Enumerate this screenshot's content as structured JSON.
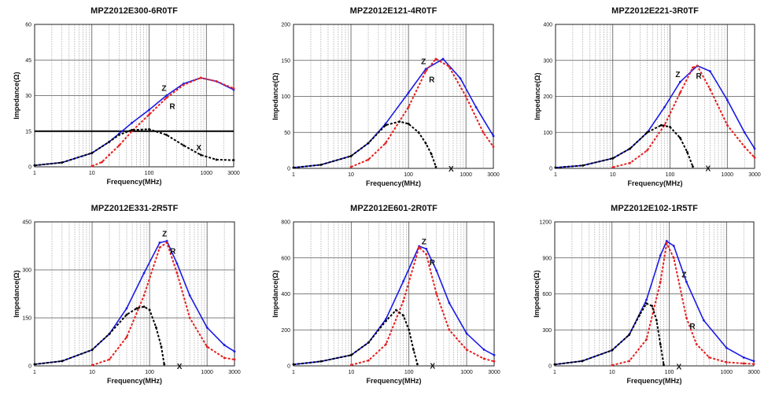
{
  "chart_data": [
    {
      "type": "line",
      "title": "MPZ2012E300-6R0TF",
      "xlabel": "Frequency(MHz)",
      "ylabel": "Impedance(Ω)",
      "x_scale": "log",
      "xlim": [
        1,
        3000
      ],
      "x_ticks": [
        "1",
        "10",
        "100",
        "1000",
        "3000"
      ],
      "ylim": [
        0,
        60
      ],
      "y_ticks": [
        "0",
        "15",
        "30",
        "45",
        "60"
      ],
      "grid": true,
      "series": [
        {
          "name": "Z",
          "color": "#1a1ae6",
          "x": [
            1,
            3,
            10,
            20,
            30,
            50,
            100,
            200,
            400,
            800,
            1500,
            3000
          ],
          "y": [
            0.6,
            1.8,
            5.8,
            10.5,
            14,
            18.5,
            24,
            30,
            35,
            37.5,
            36,
            32.5
          ]
        },
        {
          "name": "R",
          "color": "#e62020",
          "x": [
            10,
            15,
            20,
            30,
            50,
            100,
            200,
            400,
            800,
            1500,
            3000
          ],
          "y": [
            0.3,
            2,
            5,
            9,
            15,
            22,
            29,
            34.5,
            37.5,
            36,
            33
          ]
        },
        {
          "name": "X",
          "color": "#000000",
          "x": [
            1,
            3,
            10,
            20,
            30,
            50,
            100,
            200,
            400,
            800,
            1500,
            3000
          ],
          "y": [
            0.6,
            1.8,
            5.8,
            10.5,
            13.5,
            15.5,
            15.8,
            13.5,
            9,
            5,
            3,
            2.8
          ]
        }
      ],
      "hline": 15
    },
    {
      "type": "line",
      "title": "MPZ2012E121-4R0TF",
      "xlabel": "Frequency(MHz)",
      "ylabel": "Impedance(Ω)",
      "x_scale": "log",
      "xlim": [
        1,
        3000
      ],
      "x_ticks": [
        "1",
        "10",
        "100",
        "1000",
        "3000"
      ],
      "ylim": [
        0,
        200
      ],
      "y_ticks": [
        "0",
        "50",
        "100",
        "150",
        "200"
      ],
      "grid": true,
      "series": [
        {
          "name": "Z",
          "color": "#1a1ae6",
          "x": [
            1,
            3,
            10,
            20,
            40,
            100,
            200,
            400,
            800,
            1500,
            3000
          ],
          "y": [
            1,
            5,
            17,
            35,
            62,
            105,
            138,
            152,
            125,
            85,
            45
          ]
        },
        {
          "name": "R",
          "color": "#e62020",
          "x": [
            10,
            20,
            40,
            100,
            200,
            300,
            500,
            1000,
            2000,
            3000
          ],
          "y": [
            2,
            12,
            35,
            85,
            135,
            152,
            142,
            100,
            50,
            30
          ]
        },
        {
          "name": "X",
          "color": "#000000",
          "x": [
            1,
            3,
            10,
            20,
            40,
            70,
            100,
            150,
            200,
            250,
            300
          ],
          "y": [
            1,
            5,
            17,
            35,
            60,
            65,
            62,
            50,
            35,
            20,
            2
          ]
        }
      ]
    },
    {
      "type": "line",
      "title": "MPZ2012E221-3R0TF",
      "xlabel": "Frequency(MHz)",
      "ylabel": "Impedance(Ω)",
      "x_scale": "log",
      "xlim": [
        1,
        3000
      ],
      "x_ticks": [
        "1",
        "10",
        "100",
        "1000",
        "3000"
      ],
      "ylim": [
        0,
        400
      ],
      "y_ticks": [
        "0",
        "100",
        "200",
        "300",
        "400"
      ],
      "grid": true,
      "series": [
        {
          "name": "Z",
          "color": "#1a1ae6",
          "x": [
            1,
            3,
            10,
            20,
            40,
            80,
            150,
            300,
            500,
            1000,
            2000,
            3000
          ],
          "y": [
            2,
            8,
            28,
            55,
            100,
            170,
            240,
            285,
            270,
            190,
            100,
            55
          ]
        },
        {
          "name": "R",
          "color": "#e62020",
          "x": [
            10,
            20,
            40,
            80,
            150,
            250,
            300,
            500,
            1000,
            2000,
            3000
          ],
          "y": [
            3,
            15,
            50,
            120,
            210,
            280,
            285,
            220,
            120,
            60,
            30
          ]
        },
        {
          "name": "X",
          "color": "#000000",
          "x": [
            1,
            3,
            10,
            20,
            40,
            70,
            100,
            150,
            200,
            250
          ],
          "y": [
            2,
            8,
            28,
            55,
            100,
            120,
            115,
            85,
            45,
            5
          ]
        }
      ]
    },
    {
      "type": "line",
      "title": "MPZ2012E331-2R5TF",
      "xlabel": "Frequency(MHz)",
      "ylabel": "Impedance(Ω)",
      "x_scale": "log",
      "xlim": [
        1,
        3000
      ],
      "x_ticks": [
        "1",
        "10",
        "100",
        "1000",
        "3000"
      ],
      "ylim": [
        0,
        450
      ],
      "y_ticks": [
        "0",
        "150",
        "300",
        "450"
      ],
      "grid": true,
      "series": [
        {
          "name": "Z",
          "color": "#1a1ae6",
          "x": [
            1,
            3,
            10,
            20,
            40,
            80,
            150,
            200,
            300,
            500,
            1000,
            2000,
            3000
          ],
          "y": [
            5,
            15,
            50,
            100,
            180,
            290,
            385,
            390,
            320,
            220,
            120,
            65,
            45
          ]
        },
        {
          "name": "R",
          "color": "#e62020",
          "x": [
            10,
            20,
            40,
            80,
            150,
            200,
            300,
            500,
            1000,
            2000,
            3000
          ],
          "y": [
            2,
            20,
            90,
            220,
            370,
            385,
            290,
            150,
            60,
            25,
            20
          ]
        },
        {
          "name": "X",
          "color": "#000000",
          "x": [
            1,
            3,
            10,
            20,
            40,
            60,
            80,
            100,
            130,
            160,
            180
          ],
          "y": [
            5,
            15,
            50,
            100,
            160,
            180,
            185,
            175,
            120,
            60,
            5
          ]
        }
      ]
    },
    {
      "type": "line",
      "title": "MPZ2012E601-2R0TF",
      "xlabel": "Frequency(MHz)",
      "ylabel": "Impedance(Ω)",
      "x_scale": "log",
      "xlim": [
        1,
        3000
      ],
      "x_ticks": [
        "1",
        "10",
        "100",
        "1000",
        "3000"
      ],
      "ylim": [
        0,
        800
      ],
      "y_ticks": [
        "0",
        "200",
        "400",
        "600",
        "800"
      ],
      "grid": true,
      "series": [
        {
          "name": "Z",
          "color": "#1a1ae6",
          "x": [
            1,
            3,
            10,
            20,
            40,
            80,
            150,
            200,
            300,
            500,
            1000,
            2000,
            3000
          ],
          "y": [
            8,
            25,
            60,
            130,
            260,
            470,
            665,
            650,
            530,
            350,
            180,
            90,
            60
          ]
        },
        {
          "name": "R",
          "color": "#e62020",
          "x": [
            10,
            20,
            40,
            80,
            150,
            200,
            300,
            500,
            1000,
            2000,
            3000
          ],
          "y": [
            5,
            30,
            120,
            360,
            660,
            620,
            400,
            200,
            90,
            40,
            25
          ]
        },
        {
          "name": "X",
          "color": "#000000",
          "x": [
            1,
            3,
            10,
            20,
            40,
            60,
            80,
            100,
            120,
            140
          ],
          "y": [
            8,
            25,
            60,
            130,
            250,
            310,
            280,
            200,
            90,
            10
          ]
        }
      ]
    },
    {
      "type": "line",
      "title": "MPZ2012E102-1R5TF",
      "xlabel": "Frequency(MHz)",
      "ylabel": "Impedance(Ω)",
      "x_scale": "log",
      "xlim": [
        1,
        3000
      ],
      "x_ticks": [
        "1",
        "10",
        "100",
        "1000",
        "3000"
      ],
      "ylim": [
        0,
        1200
      ],
      "y_ticks": [
        "0",
        "300",
        "600",
        "900",
        "1200"
      ],
      "grid": true,
      "series": [
        {
          "name": "Z",
          "color": "#1a1ae6",
          "x": [
            1,
            3,
            10,
            20,
            40,
            70,
            90,
            120,
            200,
            400,
            1000,
            2000,
            3000
          ],
          "y": [
            12,
            40,
            130,
            260,
            550,
            920,
            1040,
            1000,
            700,
            380,
            150,
            70,
            40
          ]
        },
        {
          "name": "R",
          "color": "#e62020",
          "x": [
            10,
            20,
            40,
            70,
            90,
            120,
            200,
            300,
            500,
            1000,
            2000,
            3000
          ],
          "y": [
            5,
            40,
            220,
            700,
            1020,
            900,
            400,
            180,
            70,
            30,
            20,
            15
          ]
        },
        {
          "name": "X",
          "color": "#000000",
          "x": [
            1,
            3,
            10,
            20,
            30,
            40,
            50,
            60,
            70,
            80
          ],
          "y": [
            12,
            40,
            130,
            260,
            420,
            520,
            500,
            380,
            180,
            10
          ]
        }
      ]
    }
  ]
}
